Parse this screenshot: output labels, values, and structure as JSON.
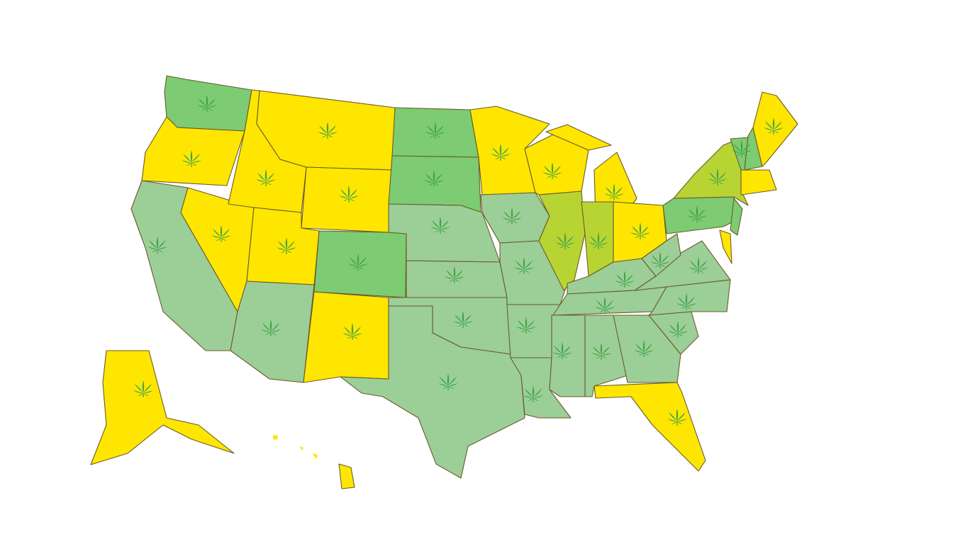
{
  "colors": {
    "background": "#ffffff",
    "yellow": "#FFE600",
    "green": "#7DCB72",
    "sage": "#9BCF97",
    "yellow_green": "#B8D433",
    "border": "#6b5a2a",
    "leaf": "#3FA348"
  },
  "icon": "cannabis-leaf-icon",
  "regions": [
    {
      "id": "washington",
      "fill": "green",
      "leaf": true
    },
    {
      "id": "oregon",
      "fill": "yellow",
      "leaf": true
    },
    {
      "id": "california",
      "fill": "sage",
      "leaf": true
    },
    {
      "id": "nevada",
      "fill": "yellow",
      "leaf": true
    },
    {
      "id": "idaho",
      "fill": "yellow",
      "leaf": true
    },
    {
      "id": "montana",
      "fill": "yellow",
      "leaf": true
    },
    {
      "id": "wyoming",
      "fill": "yellow",
      "leaf": true
    },
    {
      "id": "utah",
      "fill": "yellow",
      "leaf": true
    },
    {
      "id": "arizona",
      "fill": "sage",
      "leaf": true
    },
    {
      "id": "colorado",
      "fill": "green",
      "leaf": true
    },
    {
      "id": "new-mexico",
      "fill": "yellow",
      "leaf": true
    },
    {
      "id": "north-dakota",
      "fill": "green",
      "leaf": true
    },
    {
      "id": "south-dakota",
      "fill": "green",
      "leaf": true
    },
    {
      "id": "nebraska",
      "fill": "sage",
      "leaf": true
    },
    {
      "id": "kansas",
      "fill": "sage",
      "leaf": true
    },
    {
      "id": "oklahoma",
      "fill": "sage",
      "leaf": true
    },
    {
      "id": "texas",
      "fill": "sage",
      "leaf": true
    },
    {
      "id": "minnesota",
      "fill": "yellow",
      "leaf": true
    },
    {
      "id": "iowa",
      "fill": "sage",
      "leaf": true
    },
    {
      "id": "missouri",
      "fill": "sage",
      "leaf": true
    },
    {
      "id": "arkansas",
      "fill": "sage",
      "leaf": true
    },
    {
      "id": "louisiana",
      "fill": "sage",
      "leaf": true
    },
    {
      "id": "wisconsin",
      "fill": "yellow",
      "leaf": true
    },
    {
      "id": "michigan",
      "fill": "yellow",
      "leaf": true
    },
    {
      "id": "michigan-upper",
      "fill": "yellow",
      "leaf": false
    },
    {
      "id": "illinois",
      "fill": "yellow_green",
      "leaf": true
    },
    {
      "id": "indiana",
      "fill": "yellow_green",
      "leaf": true
    },
    {
      "id": "ohio",
      "fill": "yellow",
      "leaf": true
    },
    {
      "id": "kentucky",
      "fill": "sage",
      "leaf": true
    },
    {
      "id": "tennessee",
      "fill": "sage",
      "leaf": true
    },
    {
      "id": "mississippi",
      "fill": "sage",
      "leaf": true
    },
    {
      "id": "alabama",
      "fill": "sage",
      "leaf": true
    },
    {
      "id": "georgia",
      "fill": "sage",
      "leaf": true
    },
    {
      "id": "florida",
      "fill": "yellow",
      "leaf": true
    },
    {
      "id": "south-carolina",
      "fill": "sage",
      "leaf": true
    },
    {
      "id": "north-carolina",
      "fill": "sage",
      "leaf": true
    },
    {
      "id": "virginia",
      "fill": "sage",
      "leaf": true
    },
    {
      "id": "west-virginia",
      "fill": "sage",
      "leaf": true
    },
    {
      "id": "pennsylvania",
      "fill": "green",
      "leaf": true
    },
    {
      "id": "maryland-delaware",
      "fill": "yellow",
      "leaf": false
    },
    {
      "id": "new-jersey",
      "fill": "green",
      "leaf": false
    },
    {
      "id": "new-york",
      "fill": "yellow_green",
      "leaf": true
    },
    {
      "id": "vermont",
      "fill": "green",
      "leaf": true
    },
    {
      "id": "new-hampshire",
      "fill": "green",
      "leaf": false
    },
    {
      "id": "maine",
      "fill": "yellow",
      "leaf": true
    },
    {
      "id": "southern-new-england",
      "fill": "yellow",
      "leaf": false
    },
    {
      "id": "alaska",
      "fill": "yellow",
      "leaf": true
    },
    {
      "id": "hawaii",
      "fill": "yellow",
      "leaf": false
    }
  ]
}
